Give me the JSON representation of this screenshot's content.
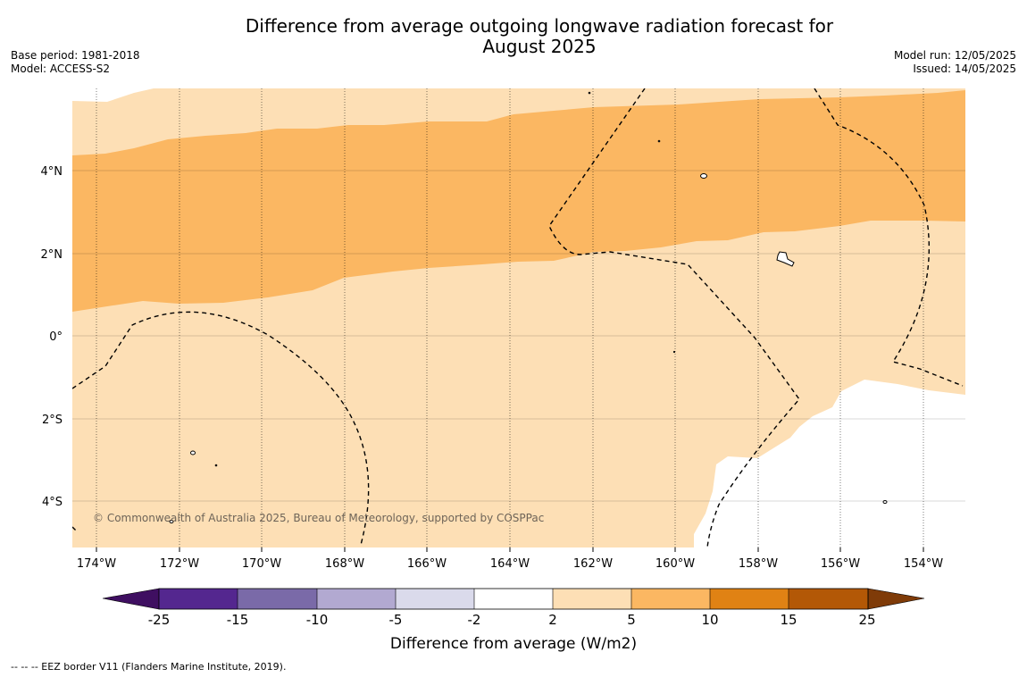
{
  "title_line1": "Difference from average outgoing longwave radiation forecast for",
  "title_line2": "August 2025",
  "base_period": "Base period: 1981-2018",
  "model": "Model: ACCESS-S2",
  "model_run": "Model run: 12/05/2025",
  "issued": "Issued: 14/05/2025",
  "copyright": "© Commonwealth of Australia 2025, Bureau of Meteorology, supported by COSPPac",
  "footer_note": "--  --  -- EEZ border V11 (Flanders Marine Institute, 2019).",
  "lat_labels": [
    "4°N",
    "2°N",
    "0°",
    "2°S",
    "4°S"
  ],
  "lon_labels": [
    "174°W",
    "172°W",
    "170°W",
    "168°W",
    "166°W",
    "164°W",
    "162°W",
    "160°W",
    "158°W",
    "156°W",
    "154°W"
  ],
  "colorbar": {
    "label": "Difference from average (W/m2)",
    "ticks": [
      "-25",
      "-15",
      "-10",
      "-5",
      "-2",
      "2",
      "5",
      "10",
      "15",
      "25"
    ],
    "colors": [
      "#3f0f61",
      "#54278f",
      "#7a6aa8",
      "#b2a9d1",
      "#dadaeb",
      "#ffffff",
      "#fddfb5",
      "#fbb762",
      "#e08214",
      "#b35806",
      "#7f3b08"
    ]
  },
  "colors": {
    "band_2_5": "#fddfb5",
    "band_5_10": "#fbb762",
    "band_neutral": "#ffffff"
  }
}
